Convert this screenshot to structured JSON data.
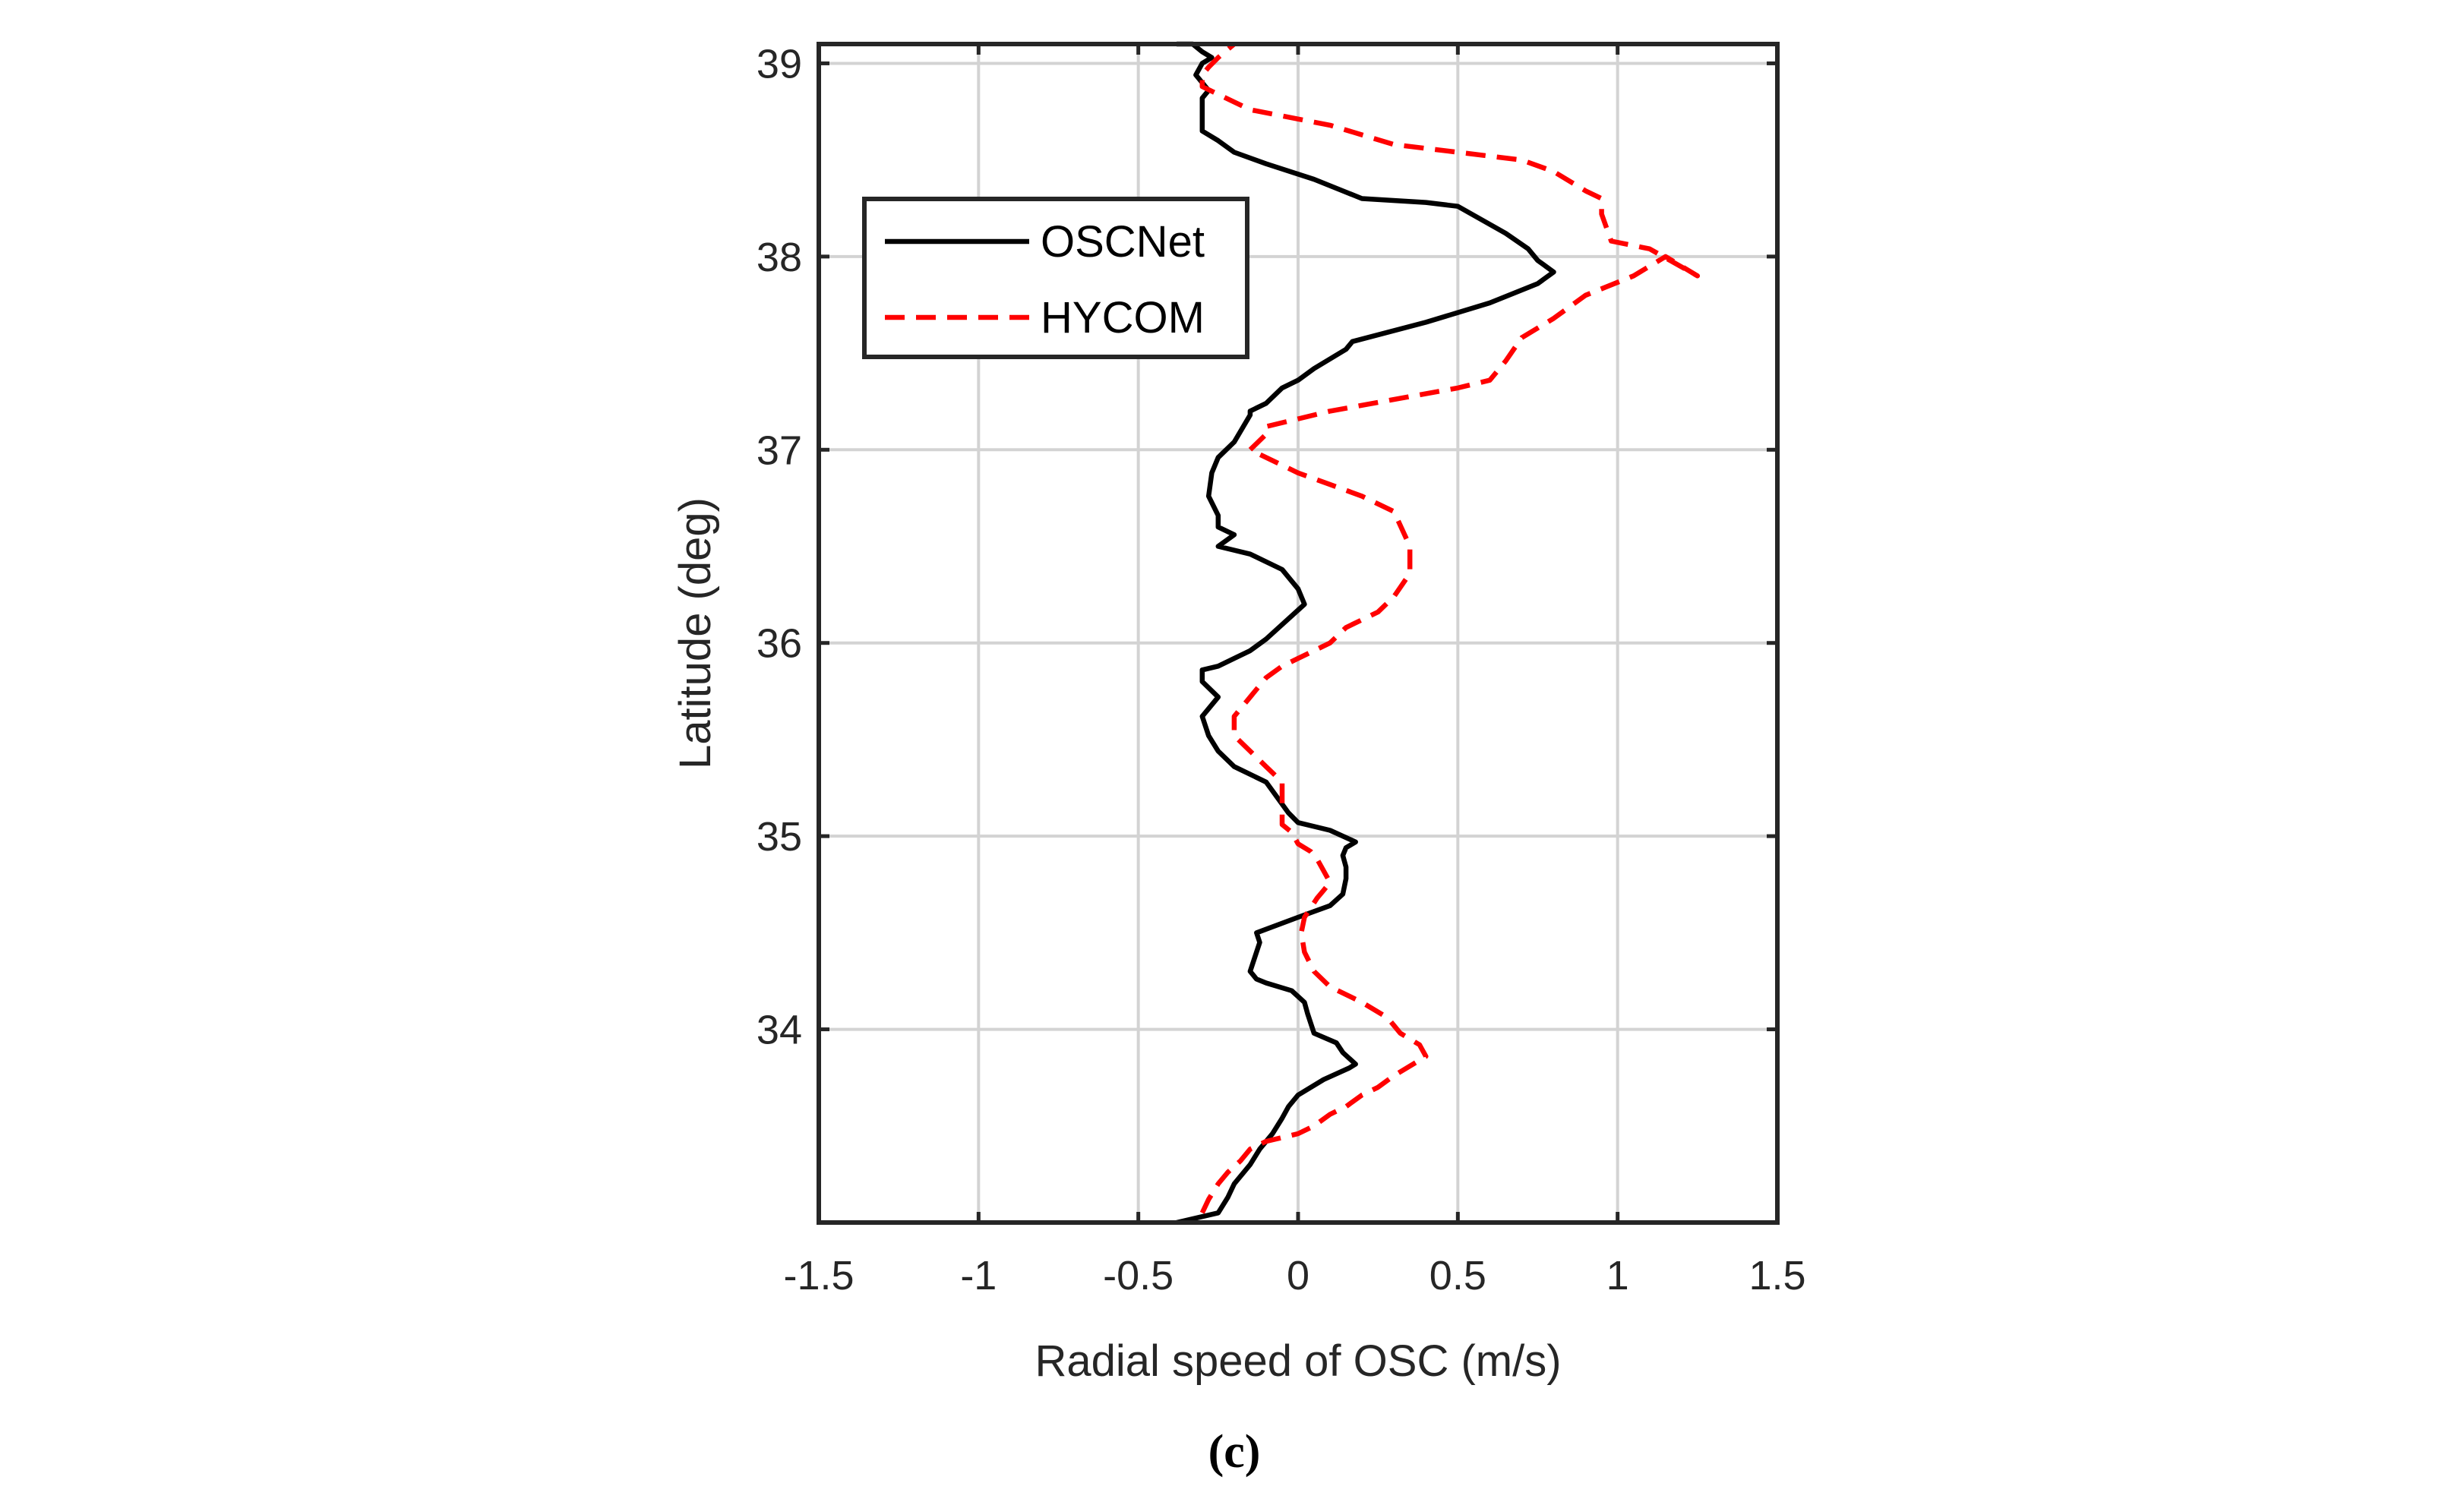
{
  "chart_data": {
    "type": "line",
    "title": "",
    "xlabel": "Radial speed of OSC (m/s)",
    "ylabel": "Latitude (deg)",
    "xlim": [
      -1.5,
      1.5
    ],
    "ylim": [
      33,
      39.1
    ],
    "xticks": [
      -1.5,
      -1,
      -0.5,
      0,
      0.5,
      1,
      1.5
    ],
    "xtick_labels": [
      "-1.5",
      "-1",
      "-0.5",
      "0",
      "0.5",
      "1",
      "1.5"
    ],
    "yticks": [
      34,
      35,
      36,
      37,
      38,
      39
    ],
    "ytick_labels": [
      "34",
      "35",
      "36",
      "37",
      "38",
      "39"
    ],
    "grid": true,
    "legend_position": "top-left",
    "panel_label": "(c)",
    "series": [
      {
        "name": "OSCNet",
        "color": "#000000",
        "style": "solid",
        "x": [
          -0.38,
          -0.25,
          -0.22,
          -0.2,
          -0.15,
          -0.12,
          -0.08,
          -0.05,
          -0.03,
          0.0,
          0.08,
          0.16,
          0.18,
          0.14,
          0.12,
          0.05,
          0.03,
          0.02,
          -0.02,
          -0.1,
          -0.13,
          -0.15,
          -0.12,
          -0.13,
          0.0,
          0.1,
          0.14,
          0.15,
          0.15,
          0.14,
          0.15,
          0.18,
          0.1,
          0.05,
          0.0,
          -0.03,
          -0.1,
          -0.2,
          -0.25,
          -0.28,
          -0.3,
          -0.25,
          -0.3,
          -0.3,
          -0.25,
          -0.2,
          -0.15,
          -0.1,
          0.02,
          0.0,
          -0.05,
          -0.15,
          -0.25,
          -0.2,
          -0.25,
          -0.25,
          -0.28,
          -0.27,
          -0.25,
          -0.2,
          -0.15,
          -0.15,
          -0.1,
          -0.05,
          0.0,
          0.05,
          0.15,
          0.17,
          0.4,
          0.6,
          0.75,
          0.8,
          0.75,
          0.72,
          0.65,
          0.5,
          0.4,
          0.2,
          0.05,
          -0.1,
          -0.2,
          -0.25,
          -0.3,
          -0.3,
          -0.3,
          -0.28,
          -0.32,
          -0.3,
          -0.27,
          -0.3,
          -0.33,
          -0.38
        ],
        "y": [
          33.0,
          33.05,
          33.13,
          33.2,
          33.3,
          33.38,
          33.46,
          33.54,
          33.6,
          33.66,
          33.74,
          33.8,
          33.82,
          33.88,
          33.93,
          33.98,
          34.08,
          34.14,
          34.2,
          34.24,
          34.26,
          34.3,
          34.45,
          34.5,
          34.58,
          34.64,
          34.7,
          34.78,
          34.84,
          34.9,
          34.94,
          34.97,
          35.03,
          35.05,
          35.07,
          35.12,
          35.28,
          35.36,
          35.44,
          35.52,
          35.62,
          35.72,
          35.8,
          35.86,
          35.88,
          35.92,
          35.96,
          36.02,
          36.2,
          36.28,
          36.38,
          36.46,
          36.5,
          36.56,
          36.6,
          36.66,
          36.76,
          36.88,
          36.96,
          37.04,
          37.18,
          37.2,
          37.24,
          37.32,
          37.36,
          37.42,
          37.52,
          37.56,
          37.66,
          37.76,
          37.86,
          37.92,
          37.98,
          38.04,
          38.12,
          38.26,
          38.28,
          38.3,
          38.4,
          38.48,
          38.54,
          38.6,
          38.65,
          38.7,
          38.82,
          38.86,
          38.94,
          39.0,
          39.03,
          39.06,
          39.1,
          39.1
        ]
      },
      {
        "name": "HYCOM",
        "color": "#ff0000",
        "style": "dashed",
        "x": [
          -0.3,
          -0.28,
          -0.25,
          -0.22,
          -0.18,
          -0.15,
          -0.1,
          -0.05,
          0.0,
          0.05,
          0.1,
          0.15,
          0.2,
          0.25,
          0.3,
          0.4,
          0.38,
          0.32,
          0.3,
          0.28,
          0.2,
          0.1,
          0.05,
          0.02,
          0.01,
          0.02,
          0.06,
          0.08,
          0.1,
          0.08,
          0.06,
          0.04,
          0.0,
          -0.02,
          -0.05,
          -0.05,
          -0.1,
          -0.15,
          -0.2,
          -0.2,
          -0.15,
          -0.1,
          -0.05,
          0.0,
          0.05,
          0.1,
          0.15,
          0.25,
          0.3,
          0.35,
          0.35,
          0.3,
          0.2,
          0.1,
          0.0,
          -0.15,
          -0.1,
          -0.1,
          0.1,
          0.3,
          0.5,
          0.6,
          0.65,
          0.7,
          0.8,
          0.9,
          1.05,
          1.15,
          1.25,
          1.1,
          0.98,
          0.95,
          0.95,
          0.9,
          0.8,
          0.7,
          0.5,
          0.3,
          0.1,
          -0.15,
          -0.25,
          -0.3,
          -0.3,
          -0.28,
          -0.25,
          -0.2
        ],
        "y": [
          33.05,
          33.12,
          33.2,
          33.26,
          33.32,
          33.38,
          33.42,
          33.44,
          33.46,
          33.5,
          33.56,
          33.6,
          33.66,
          33.7,
          33.76,
          33.86,
          33.92,
          33.98,
          34.02,
          34.06,
          34.14,
          34.22,
          34.3,
          34.4,
          34.5,
          34.58,
          34.68,
          34.72,
          34.76,
          34.82,
          34.88,
          34.92,
          34.96,
          35.02,
          35.06,
          35.28,
          35.36,
          35.44,
          35.52,
          35.62,
          35.72,
          35.82,
          35.88,
          35.92,
          35.96,
          36.0,
          36.08,
          36.16,
          36.24,
          36.36,
          36.5,
          36.68,
          36.76,
          36.82,
          36.88,
          37.0,
          37.08,
          37.12,
          37.2,
          37.26,
          37.32,
          37.36,
          37.46,
          37.58,
          37.68,
          37.8,
          37.9,
          38.0,
          37.9,
          38.04,
          38.08,
          38.22,
          38.3,
          38.34,
          38.44,
          38.5,
          38.54,
          38.58,
          38.68,
          38.76,
          38.84,
          38.88,
          38.94,
          38.98,
          39.03,
          39.1
        ]
      }
    ]
  }
}
